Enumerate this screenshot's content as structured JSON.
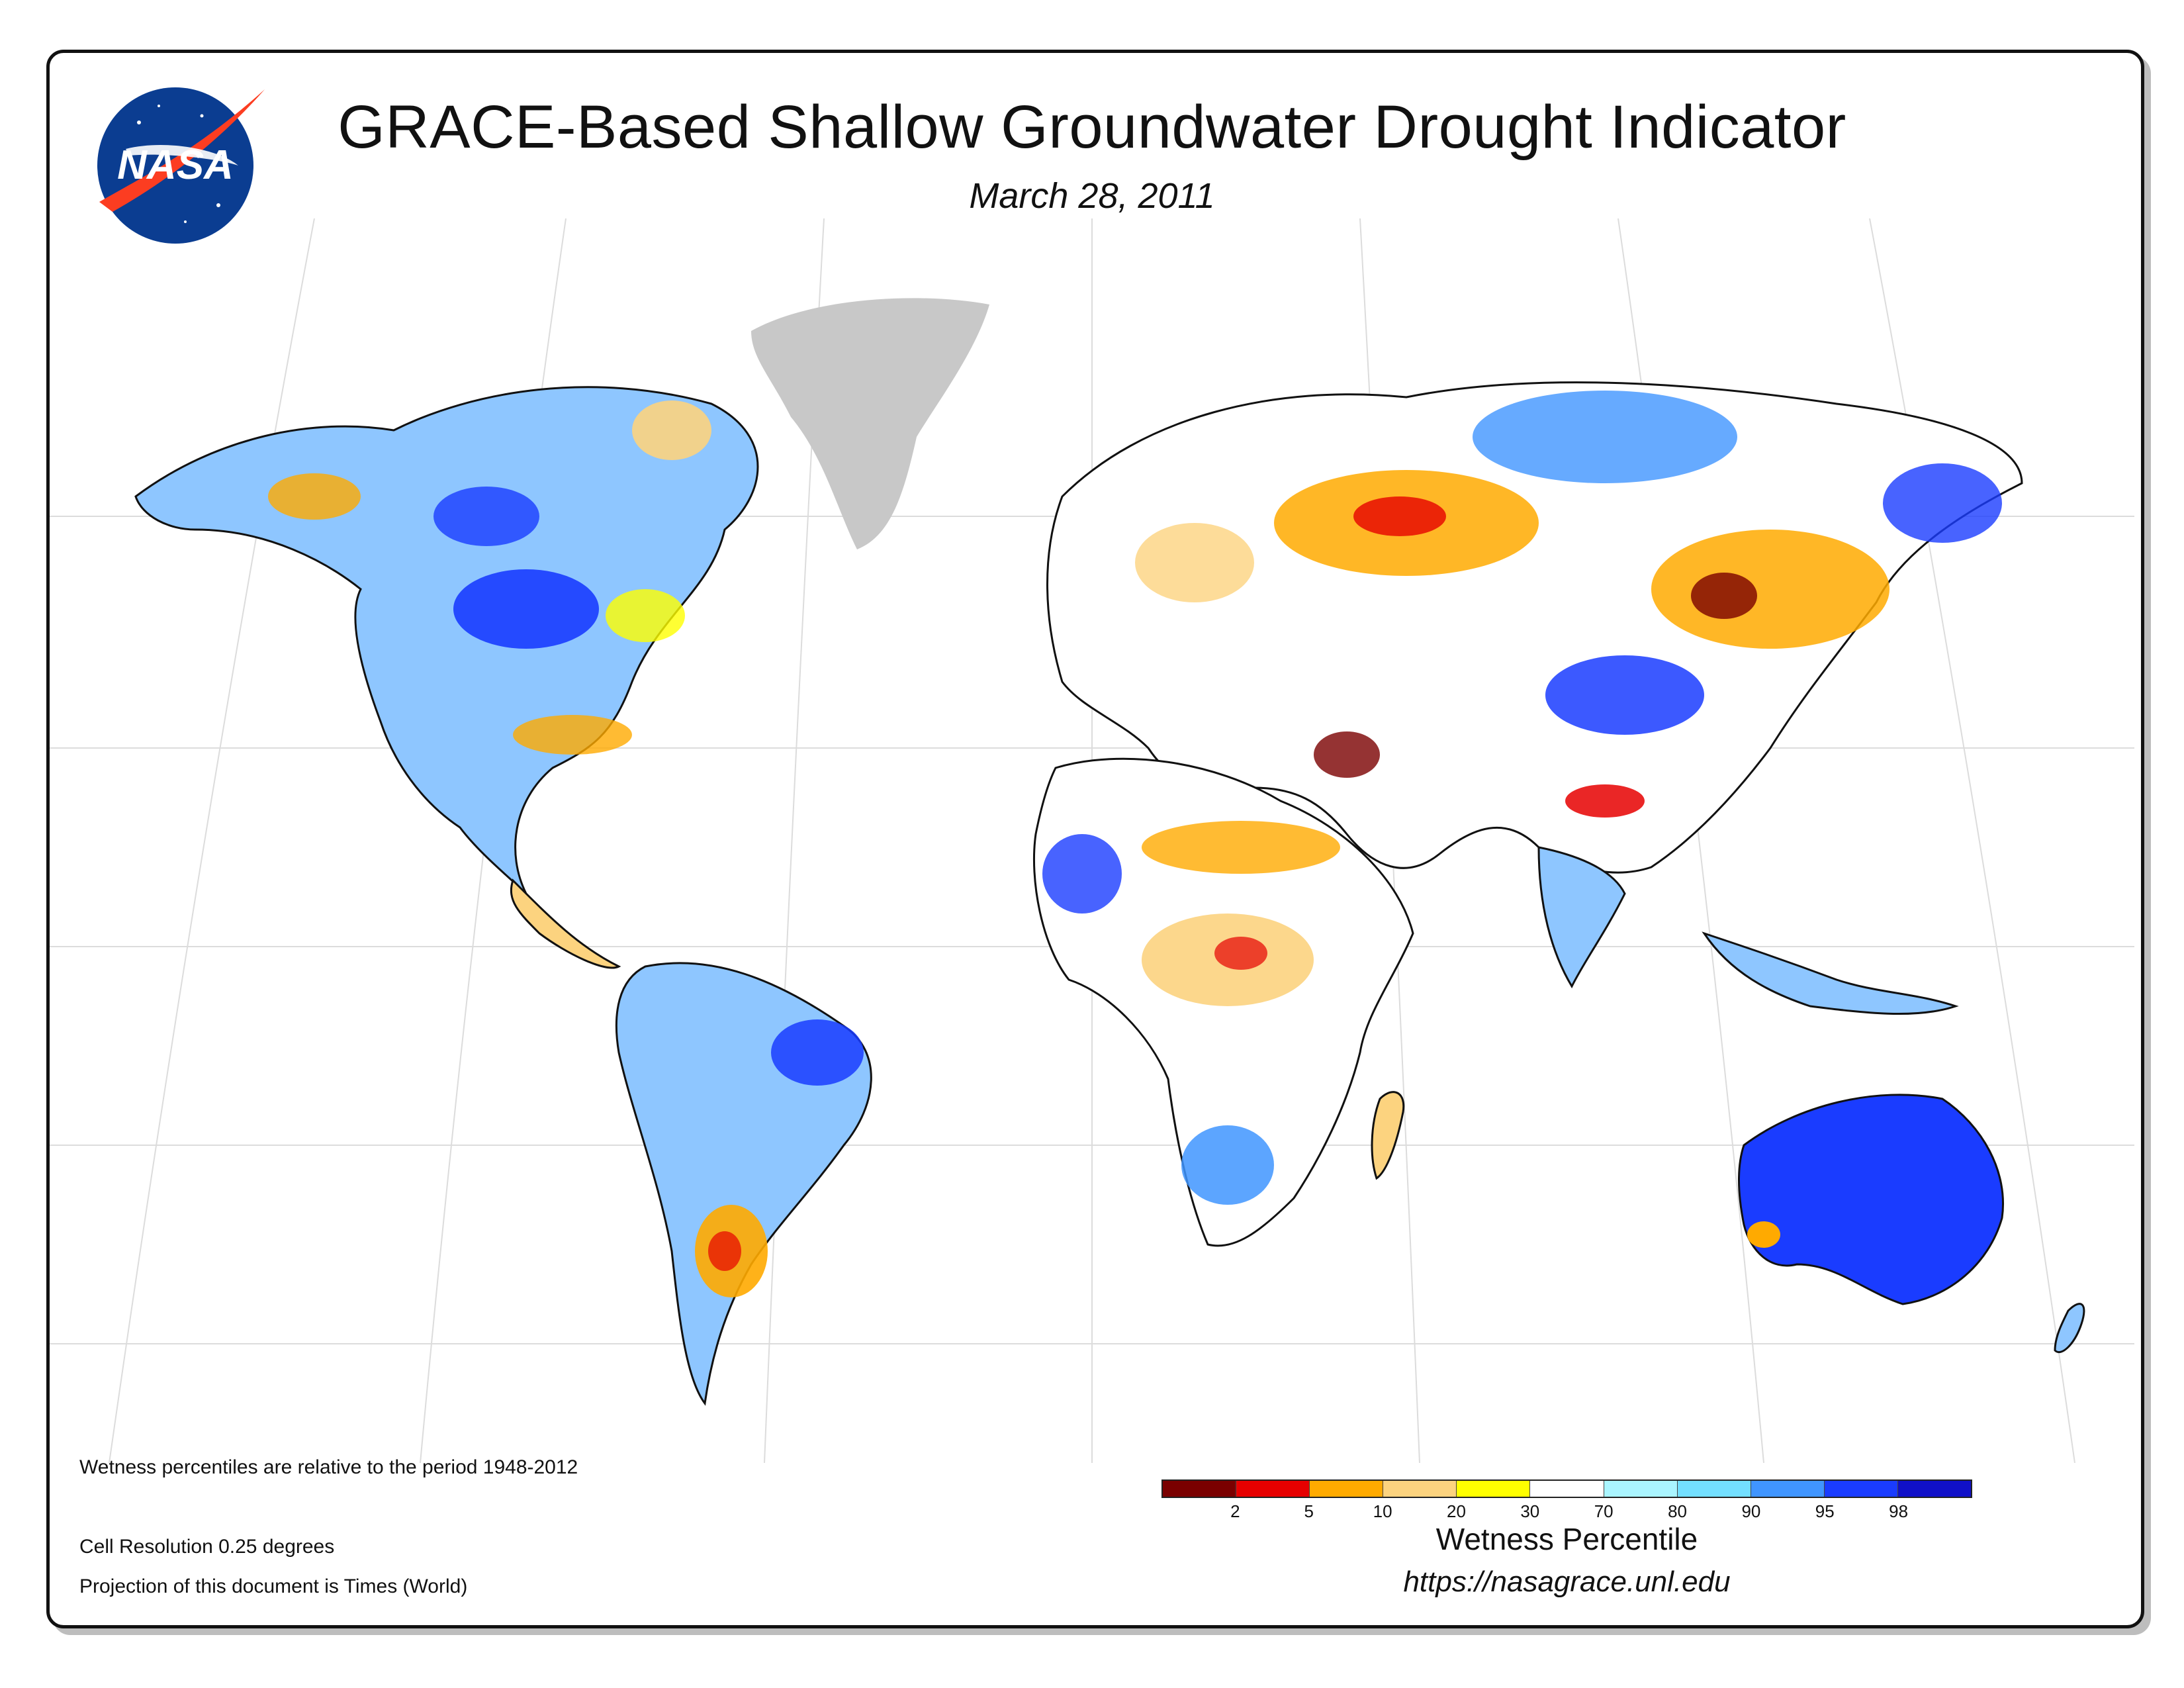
{
  "title": "GRACE-Based Shallow Groundwater Drought Indicator",
  "date": "March 28, 2011",
  "logo_text": "NASA",
  "notes": {
    "period": "Wetness percentiles are relative to the period 1948-2012",
    "resolution": "Cell Resolution 0.25 degrees",
    "projection": "Projection of this document is Times (World)"
  },
  "legend": {
    "title": "Wetness Percentile",
    "colors": [
      "#7a0000",
      "#e60000",
      "#ffaa00",
      "#fcd37f",
      "#ffff00",
      "#ffffff",
      "#aaf5ff",
      "#73dfff",
      "#4095ff",
      "#1a3cff",
      "#1010c8"
    ],
    "ticks": [
      "2",
      "5",
      "10",
      "20",
      "30",
      "70",
      "80",
      "90",
      "95",
      "98"
    ]
  },
  "url": "https://nasagrace.unl.edu",
  "icons": {
    "logo": "nasa-meatball-icon"
  }
}
